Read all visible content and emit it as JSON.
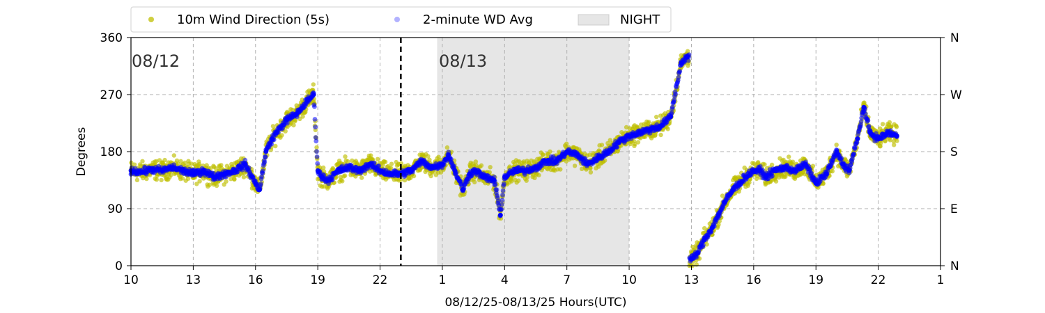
{
  "chart_data": {
    "type": "scatter",
    "xlabel": "08/12/25-08/13/25  Hours(UTC)",
    "ylabel": "Degrees",
    "x_range": [
      10,
      49
    ],
    "ylim": [
      0,
      360
    ],
    "x_ticks": [
      {
        "x": 10,
        "label": "10"
      },
      {
        "x": 13,
        "label": "13"
      },
      {
        "x": 16,
        "label": "16"
      },
      {
        "x": 19,
        "label": "19"
      },
      {
        "x": 22,
        "label": "22"
      },
      {
        "x": 25,
        "label": "1"
      },
      {
        "x": 28,
        "label": "4"
      },
      {
        "x": 31,
        "label": "7"
      },
      {
        "x": 34,
        "label": "10"
      },
      {
        "x": 37,
        "label": "13"
      },
      {
        "x": 40,
        "label": "16"
      },
      {
        "x": 43,
        "label": "19"
      },
      {
        "x": 46,
        "label": "22"
      },
      {
        "x": 49,
        "label": "1"
      }
    ],
    "y_ticks_left": [
      "0",
      "90",
      "180",
      "270",
      "360"
    ],
    "y_ticks_right": [
      "N",
      "E",
      "S",
      "W",
      "N"
    ],
    "grid": true,
    "legend_position": "top",
    "legend": [
      {
        "label": "10m Wind Direction (5s)",
        "kind": "marker",
        "color": "#bfbf00"
      },
      {
        "label": "2-minute WD Avg",
        "kind": "marker",
        "color": "#0000ff"
      },
      {
        "label": "NIGHT",
        "kind": "patch",
        "color": "#e6e6e6"
      }
    ],
    "night_band": [
      24.75,
      34
    ],
    "day_divider_x": 23,
    "day_labels": [
      {
        "text": "08/12",
        "x": 10
      },
      {
        "text": "08/13",
        "x": 24.8
      }
    ],
    "series": [
      {
        "name": "10m Wind Direction (5s)",
        "color": "#bfbf00",
        "spread": 22,
        "x": [
          10.0,
          10.5,
          11.0,
          11.5,
          12.0,
          12.5,
          13.0,
          13.5,
          14.0,
          14.5,
          15.0,
          15.5,
          16.0,
          16.2,
          16.5,
          16.8,
          17.0,
          17.5,
          18.0,
          18.5,
          18.8,
          19.0,
          19.2,
          19.5,
          20.0,
          20.5,
          21.0,
          21.5,
          22.0,
          22.5,
          23.0,
          23.5,
          24.0,
          24.5,
          25.0,
          25.3,
          25.6,
          26.0,
          26.3,
          26.6,
          27.0,
          27.5,
          27.8,
          28.0,
          28.5,
          29.0,
          29.5,
          30.0,
          30.5,
          31.0,
          31.5,
          32.0,
          32.5,
          33.0,
          33.5,
          34.0,
          34.5,
          35.0,
          35.5,
          36.0,
          36.5,
          36.8,
          37.0,
          37.3,
          37.6,
          38.0,
          38.3,
          38.6,
          39.0,
          39.3,
          39.6,
          40.0,
          40.3,
          40.6,
          41.0,
          41.5,
          42.0,
          42.5,
          43.0,
          43.5,
          44.0,
          44.3,
          44.6,
          45.0,
          45.3,
          45.6,
          46.0,
          46.5,
          46.9
        ],
        "y": [
          150,
          148,
          152,
          150,
          155,
          150,
          145,
          150,
          140,
          145,
          150,
          160,
          130,
          120,
          180,
          200,
          210,
          230,
          240,
          260,
          270,
          150,
          140,
          135,
          150,
          155,
          150,
          160,
          150,
          145,
          145,
          150,
          165,
          155,
          160,
          175,
          150,
          120,
          145,
          150,
          140,
          135,
          80,
          140,
          150,
          150,
          155,
          165,
          165,
          180,
          175,
          160,
          170,
          180,
          195,
          205,
          210,
          215,
          220,
          235,
          320,
          330,
          10,
          20,
          40,
          60,
          80,
          100,
          120,
          130,
          140,
          150,
          150,
          140,
          150,
          155,
          150,
          160,
          130,
          145,
          180,
          160,
          150,
          200,
          250,
          210,
          200,
          210,
          205
        ]
      },
      {
        "name": "2-minute WD Avg",
        "color": "#0000ff",
        "spread": 8,
        "x": [
          10.0,
          10.5,
          11.0,
          11.5,
          12.0,
          12.5,
          13.0,
          13.5,
          14.0,
          14.5,
          15.0,
          15.5,
          16.0,
          16.2,
          16.5,
          16.8,
          17.0,
          17.5,
          18.0,
          18.5,
          18.8,
          19.0,
          19.2,
          19.5,
          20.0,
          20.5,
          21.0,
          21.5,
          22.0,
          22.5,
          23.0,
          23.5,
          24.0,
          24.5,
          25.0,
          25.3,
          25.6,
          26.0,
          26.3,
          26.6,
          27.0,
          27.5,
          27.8,
          28.0,
          28.5,
          29.0,
          29.5,
          30.0,
          30.5,
          31.0,
          31.5,
          32.0,
          32.5,
          33.0,
          33.5,
          34.0,
          34.5,
          35.0,
          35.5,
          36.0,
          36.5,
          36.8,
          37.0,
          37.3,
          37.6,
          38.0,
          38.3,
          38.6,
          39.0,
          39.3,
          39.6,
          40.0,
          40.3,
          40.6,
          41.0,
          41.5,
          42.0,
          42.5,
          43.0,
          43.5,
          44.0,
          44.3,
          44.6,
          45.0,
          45.3,
          45.6,
          46.0,
          46.5,
          46.9
        ],
        "y": [
          150,
          148,
          152,
          150,
          155,
          150,
          145,
          150,
          140,
          145,
          150,
          160,
          130,
          120,
          180,
          200,
          210,
          230,
          240,
          260,
          270,
          150,
          140,
          135,
          150,
          155,
          150,
          160,
          150,
          145,
          145,
          150,
          165,
          155,
          160,
          175,
          150,
          120,
          145,
          150,
          140,
          135,
          80,
          140,
          150,
          150,
          155,
          165,
          165,
          180,
          175,
          160,
          170,
          180,
          195,
          205,
          210,
          215,
          220,
          235,
          320,
          330,
          10,
          20,
          40,
          60,
          80,
          100,
          120,
          130,
          140,
          150,
          150,
          140,
          150,
          155,
          150,
          160,
          130,
          145,
          180,
          160,
          150,
          200,
          250,
          210,
          200,
          210,
          205
        ]
      }
    ]
  }
}
